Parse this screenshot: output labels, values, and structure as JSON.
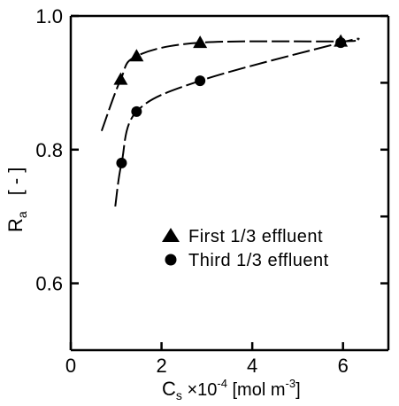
{
  "chart_data": {
    "type": "scatter",
    "title": "",
    "xlabel": {
      "symbol": "C",
      "subscript": "s",
      "scale_prefix": " ×10",
      "scale_exponent": "-4",
      "unit_prefix": " [mol m",
      "unit_exponent": "-3",
      "unit_suffix": "]"
    },
    "ylabel": {
      "symbol": "R",
      "subscript": "a",
      "unit": "[ - ]"
    },
    "xlim": [
      0,
      7
    ],
    "ylim": [
      0.5,
      1.0
    ],
    "x_ticks": [
      0,
      2,
      4,
      6
    ],
    "x_tick_labels": [
      "0",
      "2",
      "4",
      "6"
    ],
    "y_ticks": [
      0.6,
      0.8,
      1.0
    ],
    "y_tick_labels": [
      "0.6",
      "0.8",
      "1.0"
    ],
    "grid": false,
    "legend_position": "lower-right",
    "series": [
      {
        "name": "First 1/3 effluent",
        "marker": "triangle",
        "points": [
          {
            "x": 1.1,
            "y": 0.905
          },
          {
            "x": 1.45,
            "y": 0.94
          },
          {
            "x": 2.85,
            "y": 0.96
          },
          {
            "x": 5.95,
            "y": 0.962
          }
        ]
      },
      {
        "name": "Third 1/3 effluent",
        "marker": "circle",
        "points": [
          {
            "x": 1.12,
            "y": 0.78
          },
          {
            "x": 1.45,
            "y": 0.857
          },
          {
            "x": 2.85,
            "y": 0.903
          },
          {
            "x": 5.95,
            "y": 0.96
          }
        ]
      }
    ]
  }
}
